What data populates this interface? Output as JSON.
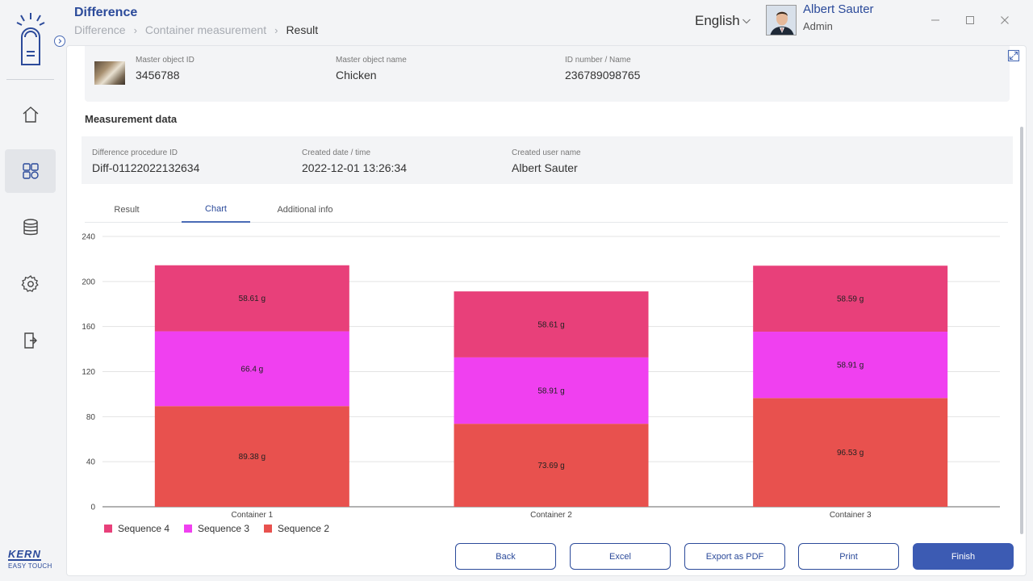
{
  "header": {
    "title": "Difference",
    "breadcrumb": [
      "Difference",
      "Container measurement",
      "Result"
    ],
    "language": "English",
    "user_name": "Albert Sauter",
    "user_role": "Admin"
  },
  "sidebar": {
    "items": [
      {
        "icon": "home-icon",
        "active": false
      },
      {
        "icon": "grid-icon",
        "active": true
      },
      {
        "icon": "database-icon",
        "active": false
      },
      {
        "icon": "gear-icon",
        "active": false
      },
      {
        "icon": "logout-icon",
        "active": false
      }
    ],
    "brand_name": "KERN",
    "brand_sub": "EASY TOUCH"
  },
  "master": {
    "id_label": "Master object ID",
    "id_value": "3456788",
    "name_label": "Master object name",
    "name_value": "Chicken",
    "idnum_label": "ID number / Name",
    "idnum_value": "236789098765"
  },
  "measurement": {
    "section_title": "Measurement data",
    "proc_label": "Difference procedure ID",
    "proc_value": "Diff-01122022132634",
    "date_label": "Created date / time",
    "date_value": "2022-12-01 13:26:34",
    "user_label": "Created user name",
    "user_value": "Albert Sauter"
  },
  "tabs": [
    {
      "label": "Result",
      "active": false
    },
    {
      "label": "Chart",
      "active": true
    },
    {
      "label": "Additional info",
      "active": false
    }
  ],
  "chart_data": {
    "type": "bar",
    "stacked": true,
    "categories": [
      "Container 1",
      "Container 2",
      "Container 3"
    ],
    "series": [
      {
        "name": "Sequence 2",
        "values": [
          89.38,
          73.69,
          96.53
        ],
        "labels": [
          "89.38 g",
          "73.69 g",
          "96.53 g"
        ],
        "color": "#e8514e"
      },
      {
        "name": "Sequence 3",
        "values": [
          66.4,
          58.91,
          58.91
        ],
        "labels": [
          "66.4 g",
          "58.91 g",
          "58.91 g"
        ],
        "color": "#f040f0"
      },
      {
        "name": "Sequence 4",
        "values": [
          58.61,
          58.61,
          58.59
        ],
        "labels": [
          "58.61 g",
          "58.61 g",
          "58.59 g"
        ],
        "color": "#e8407a"
      }
    ],
    "legend_order": [
      "Sequence 4",
      "Sequence 3",
      "Sequence 2"
    ],
    "yticks": [
      "0",
      "40",
      "80",
      "120",
      "160",
      "200",
      "240"
    ],
    "ylim": [
      0,
      240
    ],
    "grid": true,
    "legend": "bottom-left"
  },
  "buttons": {
    "back": "Back",
    "excel": "Excel",
    "pdf": "Export as PDF",
    "print": "Print",
    "finish": "Finish"
  },
  "colors": {
    "accent": "#2b4a9a",
    "primary_button": "#3c5bb3"
  }
}
